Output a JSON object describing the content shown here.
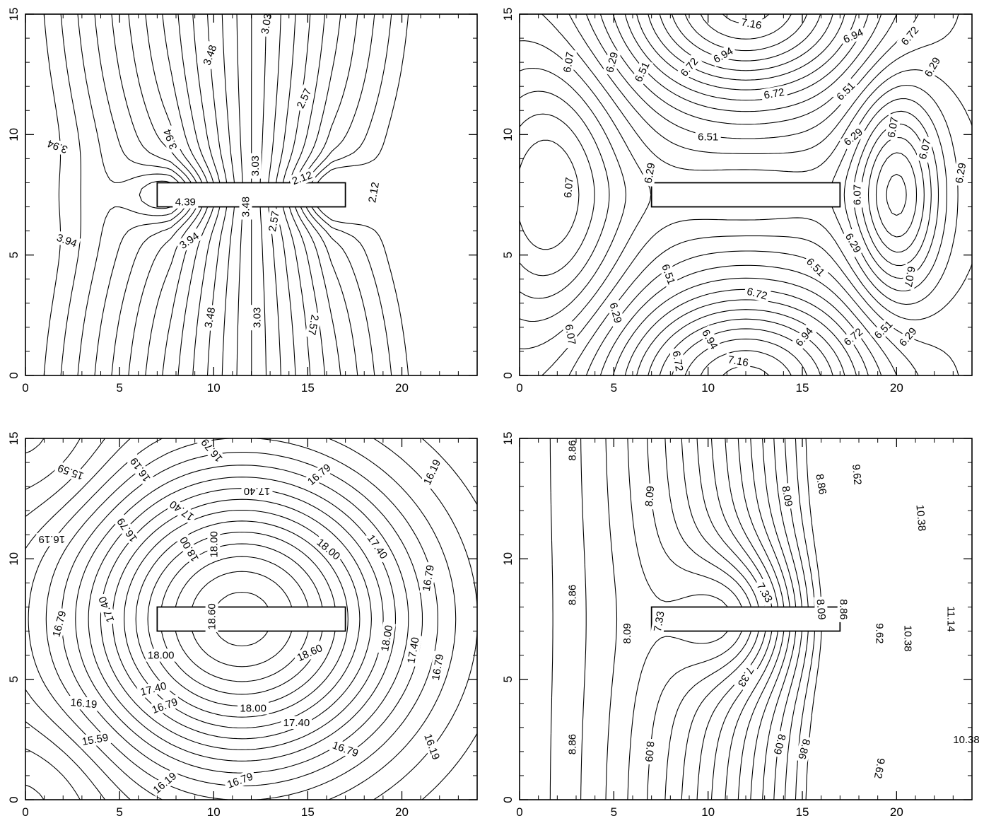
{
  "chart_data": [
    {
      "type": "contour",
      "panel": "top-left",
      "title": "",
      "xlabel": "",
      "ylabel": "",
      "xlim": [
        0,
        24
      ],
      "ylim": [
        0,
        15
      ],
      "xticks": [
        "0",
        "5",
        "10",
        "15",
        "20"
      ],
      "yticks": [
        "0",
        "5",
        "10",
        "15"
      ],
      "grid": false,
      "rectangle": {
        "x0": 7,
        "x1": 17,
        "y0": 7,
        "y1": 8
      },
      "levels": [
        2.12,
        2.57,
        3.03,
        3.48,
        3.94,
        4.39
      ],
      "labels": [
        {
          "text": "3.03",
          "x": 12.8,
          "y": 14.6,
          "angle": -80
        },
        {
          "text": "3.48",
          "x": 9.8,
          "y": 13.3,
          "angle": -70
        },
        {
          "text": "2.57",
          "x": 14.8,
          "y": 11.5,
          "angle": -65
        },
        {
          "text": "3.94",
          "x": 1.7,
          "y": 9.5,
          "angle": 200
        },
        {
          "text": "3.94",
          "x": 7.7,
          "y": 9.8,
          "angle": 250
        },
        {
          "text": "3.03",
          "x": 12.2,
          "y": 8.7,
          "angle": -90
        },
        {
          "text": "2.12",
          "x": 14.7,
          "y": 8.2,
          "angle": -20
        },
        {
          "text": "2.12",
          "x": 18.5,
          "y": 7.6,
          "angle": -80
        },
        {
          "text": "4.39",
          "x": 8.5,
          "y": 7.2,
          "angle": 0
        },
        {
          "text": "3.48",
          "x": 11.7,
          "y": 7.0,
          "angle": -90
        },
        {
          "text": "2.57",
          "x": 13.2,
          "y": 6.4,
          "angle": -80
        },
        {
          "text": "3.94",
          "x": 2.2,
          "y": 5.6,
          "angle": 20
        },
        {
          "text": "3.94",
          "x": 8.7,
          "y": 5.6,
          "angle": -35
        },
        {
          "text": "3.48",
          "x": 9.8,
          "y": 2.4,
          "angle": -80
        },
        {
          "text": "3.03",
          "x": 12.3,
          "y": 2.4,
          "angle": -90
        },
        {
          "text": "2.57",
          "x": 15.3,
          "y": 2.1,
          "angle": 100
        }
      ]
    },
    {
      "type": "contour",
      "panel": "top-right",
      "title": "",
      "xlabel": "",
      "ylabel": "",
      "xlim": [
        0,
        24
      ],
      "ylim": [
        0,
        15
      ],
      "xticks": [
        "0",
        "5",
        "10",
        "15",
        "20"
      ],
      "yticks": [
        "0",
        "5",
        "10",
        "15"
      ],
      "grid": false,
      "rectangle": {
        "x0": 7,
        "x1": 17,
        "y0": 7,
        "y1": 8
      },
      "levels": [
        6.07,
        6.29,
        6.51,
        6.72,
        6.94,
        7.16
      ],
      "labels": [
        {
          "text": "7.16",
          "x": 12.3,
          "y": 14.6,
          "angle": 10
        },
        {
          "text": "6.94",
          "x": 17.7,
          "y": 14.1,
          "angle": -25
        },
        {
          "text": "6.72",
          "x": 20.7,
          "y": 14.1,
          "angle": -50
        },
        {
          "text": "6.07",
          "x": 2.6,
          "y": 13.0,
          "angle": -80
        },
        {
          "text": "6.29",
          "x": 4.9,
          "y": 13.0,
          "angle": -75
        },
        {
          "text": "6.51",
          "x": 6.5,
          "y": 12.6,
          "angle": -65
        },
        {
          "text": "6.72",
          "x": 9.0,
          "y": 12.8,
          "angle": -50
        },
        {
          "text": "6.94",
          "x": 10.8,
          "y": 13.3,
          "angle": -30
        },
        {
          "text": "6.72",
          "x": 13.5,
          "y": 11.7,
          "angle": -10
        },
        {
          "text": "6.51",
          "x": 17.3,
          "y": 11.8,
          "angle": -45
        },
        {
          "text": "6.29",
          "x": 21.9,
          "y": 12.8,
          "angle": -60
        },
        {
          "text": "6.51",
          "x": 10.0,
          "y": 9.9,
          "angle": 0
        },
        {
          "text": "6.29",
          "x": 17.7,
          "y": 9.9,
          "angle": -40
        },
        {
          "text": "6.07",
          "x": 19.8,
          "y": 10.3,
          "angle": -80
        },
        {
          "text": "6.07",
          "x": 21.5,
          "y": 9.4,
          "angle": -75
        },
        {
          "text": "6.29",
          "x": 23.4,
          "y": 8.4,
          "angle": -80
        },
        {
          "text": "6.07",
          "x": 2.6,
          "y": 7.8,
          "angle": -85
        },
        {
          "text": "6.29",
          "x": 6.9,
          "y": 8.4,
          "angle": -80
        },
        {
          "text": "6.07",
          "x": 17.9,
          "y": 7.5,
          "angle": -90
        },
        {
          "text": "6.29",
          "x": 17.7,
          "y": 5.5,
          "angle": 60
        },
        {
          "text": "6.51",
          "x": 15.7,
          "y": 4.5,
          "angle": 45
        },
        {
          "text": "6.51",
          "x": 7.9,
          "y": 4.2,
          "angle": 70
        },
        {
          "text": "6.72",
          "x": 12.6,
          "y": 3.4,
          "angle": 15
        },
        {
          "text": "6.07",
          "x": 20.7,
          "y": 4.1,
          "angle": 100
        },
        {
          "text": "6.29",
          "x": 5.1,
          "y": 2.6,
          "angle": 75
        },
        {
          "text": "6.07",
          "x": 2.7,
          "y": 1.7,
          "angle": 80
        },
        {
          "text": "6.94",
          "x": 10.1,
          "y": 1.5,
          "angle": 60
        },
        {
          "text": "6.94",
          "x": 15.1,
          "y": 1.6,
          "angle": -50
        },
        {
          "text": "6.72",
          "x": 17.7,
          "y": 1.6,
          "angle": -40
        },
        {
          "text": "6.51",
          "x": 19.3,
          "y": 1.9,
          "angle": -45
        },
        {
          "text": "6.29",
          "x": 20.6,
          "y": 1.6,
          "angle": -50
        },
        {
          "text": "6.72",
          "x": 8.4,
          "y": 0.6,
          "angle": 80
        },
        {
          "text": "7.16",
          "x": 11.6,
          "y": 0.6,
          "angle": 10
        }
      ]
    },
    {
      "type": "contour",
      "panel": "bottom-left",
      "title": "",
      "xlabel": "",
      "ylabel": "",
      "xlim": [
        0,
        24
      ],
      "ylim": [
        0,
        15
      ],
      "xticks": [
        "0",
        "5",
        "10",
        "15",
        "20"
      ],
      "yticks": [
        "0",
        "5",
        "10",
        "15"
      ],
      "grid": false,
      "rectangle": {
        "x0": 7,
        "x1": 17,
        "y0": 7,
        "y1": 8
      },
      "levels": [
        15.59,
        16.19,
        16.79,
        17.4,
        18.0,
        18.6
      ],
      "labels": [
        {
          "text": "15.59",
          "x": 2.4,
          "y": 13.6,
          "angle": 200
        },
        {
          "text": "16.19",
          "x": 6.1,
          "y": 13.7,
          "angle": 235
        },
        {
          "text": "16.79",
          "x": 9.9,
          "y": 14.5,
          "angle": 230
        },
        {
          "text": "17.40",
          "x": 12.3,
          "y": 12.8,
          "angle": 180
        },
        {
          "text": "16.79",
          "x": 15.6,
          "y": 13.5,
          "angle": -40
        },
        {
          "text": "16.19",
          "x": 21.6,
          "y": 13.6,
          "angle": -65
        },
        {
          "text": "16.19",
          "x": 1.4,
          "y": 10.8,
          "angle": 180
        },
        {
          "text": "16.79",
          "x": 5.4,
          "y": 11.2,
          "angle": 235
        },
        {
          "text": "17.40",
          "x": 8.3,
          "y": 12.0,
          "angle": 215
        },
        {
          "text": "18.00",
          "x": 8.7,
          "y": 10.4,
          "angle": 240
        },
        {
          "text": "18.00",
          "x": 10.0,
          "y": 10.6,
          "angle": 270
        },
        {
          "text": "18.00",
          "x": 16.1,
          "y": 10.4,
          "angle": 40
        },
        {
          "text": "17.40",
          "x": 18.7,
          "y": 10.5,
          "angle": 55
        },
        {
          "text": "16.79",
          "x": 21.4,
          "y": 9.2,
          "angle": -80
        },
        {
          "text": "17.40",
          "x": 4.3,
          "y": 7.9,
          "angle": 250
        },
        {
          "text": "18.60",
          "x": 9.9,
          "y": 7.6,
          "angle": 270
        },
        {
          "text": "16.79",
          "x": 1.8,
          "y": 7.3,
          "angle": -75
        },
        {
          "text": "18.00",
          "x": 7.2,
          "y": 6.0,
          "angle": 0
        },
        {
          "text": "18.60",
          "x": 15.1,
          "y": 6.1,
          "angle": -25
        },
        {
          "text": "18.00",
          "x": 19.2,
          "y": 6.7,
          "angle": -80
        },
        {
          "text": "17.40",
          "x": 20.6,
          "y": 6.2,
          "angle": -80
        },
        {
          "text": "16.79",
          "x": 21.9,
          "y": 5.5,
          "angle": -80
        },
        {
          "text": "17.40",
          "x": 6.8,
          "y": 4.6,
          "angle": -15
        },
        {
          "text": "16.19",
          "x": 3.1,
          "y": 4.0,
          "angle": 5
        },
        {
          "text": "16.79",
          "x": 7.4,
          "y": 3.9,
          "angle": -20
        },
        {
          "text": "18.00",
          "x": 12.1,
          "y": 3.8,
          "angle": 0
        },
        {
          "text": "17.40",
          "x": 14.4,
          "y": 3.2,
          "angle": 0
        },
        {
          "text": "15.59",
          "x": 3.7,
          "y": 2.5,
          "angle": -10
        },
        {
          "text": "16.79",
          "x": 17.0,
          "y": 2.1,
          "angle": 20
        },
        {
          "text": "16.19",
          "x": 21.6,
          "y": 2.2,
          "angle": 70
        },
        {
          "text": "16.19",
          "x": 7.4,
          "y": 0.7,
          "angle": -40
        },
        {
          "text": "16.79",
          "x": 11.4,
          "y": 0.8,
          "angle": -20
        }
      ]
    },
    {
      "type": "contour",
      "panel": "bottom-right",
      "title": "",
      "xlabel": "",
      "ylabel": "",
      "xlim": [
        0,
        24
      ],
      "ylim": [
        0,
        15
      ],
      "xticks": [
        "0",
        "5",
        "10",
        "15",
        "20"
      ],
      "yticks": [
        "0",
        "5",
        "10",
        "15"
      ],
      "grid": false,
      "rectangle": {
        "x0": 7,
        "x1": 17,
        "y0": 7,
        "y1": 8
      },
      "levels": [
        7.33,
        8.09,
        8.86,
        9.62,
        10.38,
        11.14
      ],
      "labels": [
        {
          "text": "8.86",
          "x": 2.8,
          "y": 14.5,
          "angle": -90
        },
        {
          "text": "8.09",
          "x": 6.9,
          "y": 12.6,
          "angle": -85
        },
        {
          "text": "8.09",
          "x": 14.2,
          "y": 12.6,
          "angle": 80
        },
        {
          "text": "8.86",
          "x": 16.0,
          "y": 13.1,
          "angle": 80
        },
        {
          "text": "9.62",
          "x": 17.9,
          "y": 13.5,
          "angle": 85
        },
        {
          "text": "10.38",
          "x": 21.3,
          "y": 11.7,
          "angle": 85
        },
        {
          "text": "8.86",
          "x": 2.8,
          "y": 8.5,
          "angle": -90
        },
        {
          "text": "7.33",
          "x": 13.0,
          "y": 8.6,
          "angle": 60
        },
        {
          "text": "8.09",
          "x": 16.0,
          "y": 7.9,
          "angle": 85
        },
        {
          "text": "8.86",
          "x": 17.2,
          "y": 7.9,
          "angle": 90
        },
        {
          "text": "7.33",
          "x": 7.4,
          "y": 7.4,
          "angle": -80
        },
        {
          "text": "8.09",
          "x": 5.7,
          "y": 6.9,
          "angle": -90
        },
        {
          "text": "9.62",
          "x": 19.1,
          "y": 6.9,
          "angle": 90
        },
        {
          "text": "11.14",
          "x": 22.9,
          "y": 7.5,
          "angle": 90
        },
        {
          "text": "10.38",
          "x": 20.6,
          "y": 6.7,
          "angle": 90
        },
        {
          "text": "7.33",
          "x": 12.0,
          "y": 5.1,
          "angle": 120
        },
        {
          "text": "8.09",
          "x": 13.8,
          "y": 2.3,
          "angle": 105
        },
        {
          "text": "8.86",
          "x": 15.1,
          "y": 2.1,
          "angle": 105
        },
        {
          "text": "8.86",
          "x": 2.8,
          "y": 2.3,
          "angle": -90
        },
        {
          "text": "8.09",
          "x": 6.9,
          "y": 2.0,
          "angle": 95
        },
        {
          "text": "10.38",
          "x": 23.7,
          "y": 2.5,
          "angle": 0
        },
        {
          "text": "9.62",
          "x": 19.1,
          "y": 1.3,
          "angle": 100
        }
      ]
    }
  ]
}
